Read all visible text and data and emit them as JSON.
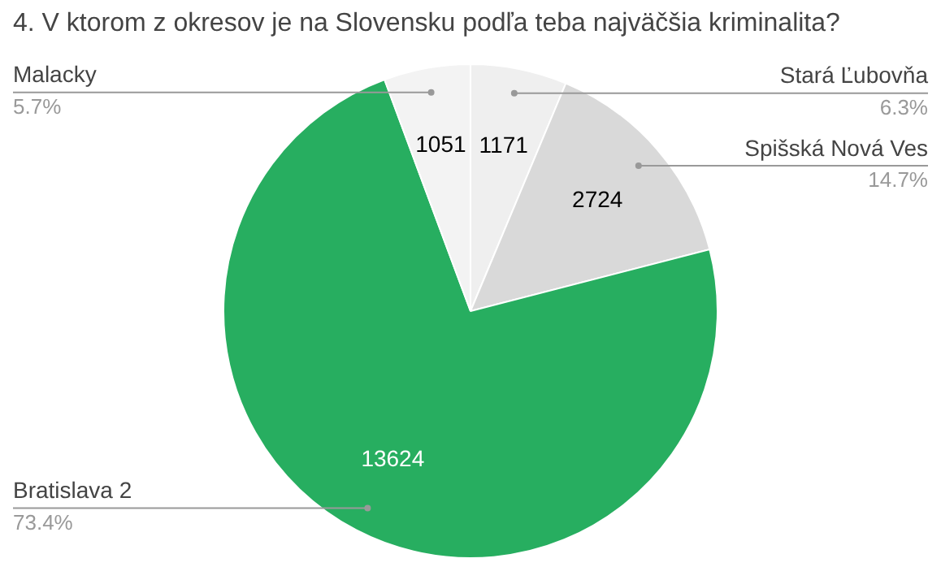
{
  "chart_data": {
    "type": "pie",
    "title": "4. V ktorom z okresov je na Slovensku podľa teba najväčšia kriminalita?",
    "categories": [
      "Stará Ľubovňa",
      "Spišská Nová Ves",
      "Bratislava 2",
      "Malacky"
    ],
    "values": [
      1171,
      2724,
      13624,
      1051
    ],
    "annotations": [
      {
        "text": "6.3%",
        "x": "Stará Ľubovňa"
      },
      {
        "text": "14.7%",
        "x": "Spišská Nová Ves"
      },
      {
        "text": "73.4%",
        "x": "Bratislava 2"
      },
      {
        "text": "5.7%",
        "x": "Malacky"
      }
    ],
    "colors": [
      "#efefef",
      "#d9d9d9",
      "#27ae60",
      "#f3f3f3"
    ],
    "data_labels": true,
    "legend": false
  }
}
